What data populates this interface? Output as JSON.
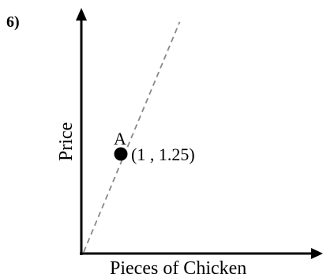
{
  "problem_number": "6)",
  "chart_data": {
    "type": "line",
    "xlabel": "Pieces of Chicken",
    "ylabel": "Price",
    "series": [
      {
        "line_style": "dashed",
        "color": "#888888",
        "x": [
          0,
          2.2
        ],
        "y": [
          0,
          5
        ]
      }
    ],
    "points": [
      {
        "label": "A",
        "x": 1,
        "y": 1.25,
        "annotation": "(1 , 1.25)"
      }
    ],
    "axis_ranges_estimated": {
      "x": [
        0,
        5.3
      ],
      "y": [
        0,
        5.2
      ]
    },
    "ticks": "none",
    "grid": false,
    "legend": "none"
  }
}
